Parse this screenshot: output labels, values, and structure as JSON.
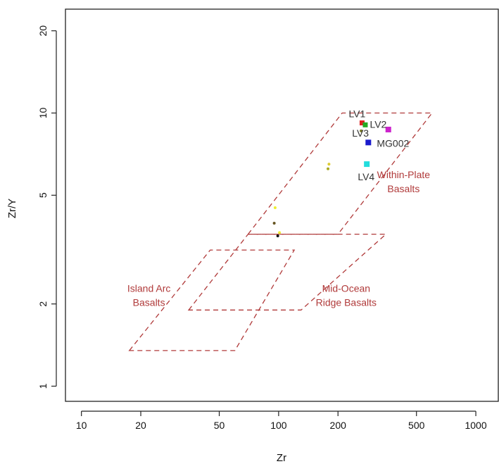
{
  "chart_data": {
    "type": "scatter",
    "xlabel": "Zr",
    "ylabel": "Zr/Y",
    "x_scale": "log",
    "y_scale": "log",
    "xlim": [
      8.3,
      1300
    ],
    "ylim": [
      0.88,
      24
    ],
    "x_ticks": [
      {
        "value": 10,
        "label": "10"
      },
      {
        "value": 20,
        "label": "20"
      },
      {
        "value": 50,
        "label": "50"
      },
      {
        "value": 100,
        "label": "100"
      },
      {
        "value": 200,
        "label": "200"
      },
      {
        "value": 500,
        "label": "500"
      },
      {
        "value": 1000,
        "label": "1000"
      }
    ],
    "y_ticks": [
      {
        "value": 1,
        "label": "1"
      },
      {
        "value": 2,
        "label": "2"
      },
      {
        "value": 5,
        "label": "5"
      },
      {
        "value": 10,
        "label": "10"
      },
      {
        "value": 20,
        "label": "20"
      }
    ],
    "grid": false,
    "region_color": "#b03a3a",
    "regions": [
      {
        "name": "within-plate",
        "label_lines": [
          "Within-Plate",
          "Basalts"
        ],
        "label_at": [
          430,
          5.6
        ],
        "polygon": [
          [
            70,
            3.6
          ],
          [
            210,
            10
          ],
          [
            600,
            10
          ],
          [
            200,
            3.6
          ]
        ]
      },
      {
        "name": "island-arc",
        "label_lines": [
          "Island Arc",
          "Basalts"
        ],
        "label_at": [
          22,
          2.15
        ],
        "polygon": [
          [
            17.5,
            1.35
          ],
          [
            45,
            3.15
          ],
          [
            120,
            3.15
          ],
          [
            60,
            1.35
          ]
        ]
      },
      {
        "name": "mid-ocean-ridge",
        "label_lines": [
          "Mid-Ocean",
          "Ridge Basalts"
        ],
        "label_at": [
          220,
          2.15
        ],
        "polygon": [
          [
            35,
            1.9
          ],
          [
            70,
            3.6
          ],
          [
            350,
            3.6
          ],
          [
            130,
            1.9
          ]
        ]
      }
    ],
    "points": [
      {
        "x": 265,
        "y": 9.2,
        "color": "#dd2222",
        "marker": "square",
        "size": 7
      },
      {
        "x": 275,
        "y": 9.05,
        "color": "#22aa22",
        "marker": "square",
        "size": 7
      },
      {
        "x": 360,
        "y": 8.7,
        "color": "#cc22cc",
        "marker": "square",
        "size": 8
      },
      {
        "x": 285,
        "y": 7.8,
        "color": "#1a1acc",
        "marker": "square",
        "size": 8
      },
      {
        "x": 280,
        "y": 6.5,
        "color": "#22dddd",
        "marker": "square",
        "size": 8
      },
      {
        "x": 262,
        "y": 8.6,
        "color": "#777722",
        "marker": "dot",
        "size": 3
      },
      {
        "x": 180,
        "y": 6.5,
        "color": "#ddcc33",
        "marker": "dot",
        "size": 3
      },
      {
        "x": 178,
        "y": 6.25,
        "color": "#aaaa22",
        "marker": "dot",
        "size": 3
      },
      {
        "x": 96,
        "y": 4.5,
        "color": "#eeee33",
        "marker": "dot",
        "size": 3
      },
      {
        "x": 95,
        "y": 3.95,
        "color": "#665522",
        "marker": "dot",
        "size": 3
      },
      {
        "x": 101,
        "y": 3.65,
        "color": "#eeee33",
        "marker": "dot",
        "size": 3
      },
      {
        "x": 99,
        "y": 3.55,
        "color": "#111111",
        "marker": "dot",
        "size": 3
      }
    ],
    "point_labels": [
      {
        "text": "LV1",
        "x": 250,
        "y": 9.95
      },
      {
        "text": "LV2",
        "x": 320,
        "y": 9.1
      },
      {
        "text": "LV3",
        "x": 260,
        "y": 8.45
      },
      {
        "text": "MG002",
        "x": 380,
        "y": 7.75
      },
      {
        "text": "LV4",
        "x": 278,
        "y": 5.85
      }
    ]
  }
}
